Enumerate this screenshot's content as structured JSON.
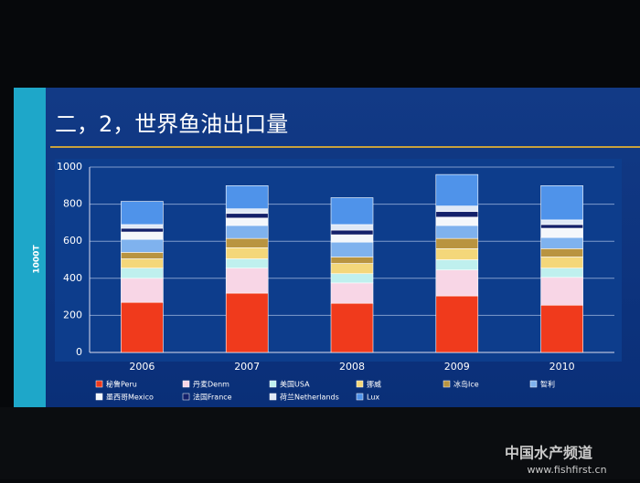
{
  "chart_data": {
    "type": "stacked_bar",
    "title": "二，2，世界鱼油出口量",
    "y_label": "1000T",
    "categories": [
      "2006",
      "2007",
      "2008",
      "2009",
      "2010"
    ],
    "ylim": [
      0,
      1000
    ],
    "yticks": [
      0,
      200,
      400,
      600,
      800,
      1000
    ],
    "grid": true,
    "series": [
      {
        "name": "秘鲁Peru",
        "color": "#f03a1c",
        "values": [
          270,
          320,
          265,
          305,
          255
        ]
      },
      {
        "name": "丹麦Denm",
        "color": "#f8d6e6",
        "values": [
          130,
          135,
          110,
          140,
          150
        ]
      },
      {
        "name": "美国USA",
        "color": "#bff0ee",
        "values": [
          55,
          50,
          50,
          55,
          50
        ]
      },
      {
        "name": "挪威",
        "color": "#f4d77a",
        "values": [
          50,
          60,
          55,
          60,
          60
        ]
      },
      {
        "name": "冰岛Ice",
        "color": "#b99440",
        "values": [
          35,
          50,
          35,
          55,
          45
        ]
      },
      {
        "name": "智利",
        "color": "#7fb2ee",
        "values": [
          70,
          70,
          80,
          70,
          60
        ]
      },
      {
        "name": "墨西哥Mexico",
        "color": "#f4f7fb",
        "values": [
          40,
          40,
          40,
          45,
          50
        ]
      },
      {
        "name": "法国France",
        "color": "#13206a",
        "values": [
          20,
          25,
          25,
          30,
          20
        ]
      },
      {
        "name": "荷兰Netherlands",
        "color": "#dfe8f6",
        "values": [
          20,
          25,
          30,
          30,
          25
        ]
      },
      {
        "name": "Lux",
        "color": "#4f93ea",
        "values": [
          125,
          125,
          145,
          170,
          185
        ]
      }
    ]
  },
  "watermark": {
    "name": "中国水产频道",
    "url": "www.fishfirst.cn"
  }
}
